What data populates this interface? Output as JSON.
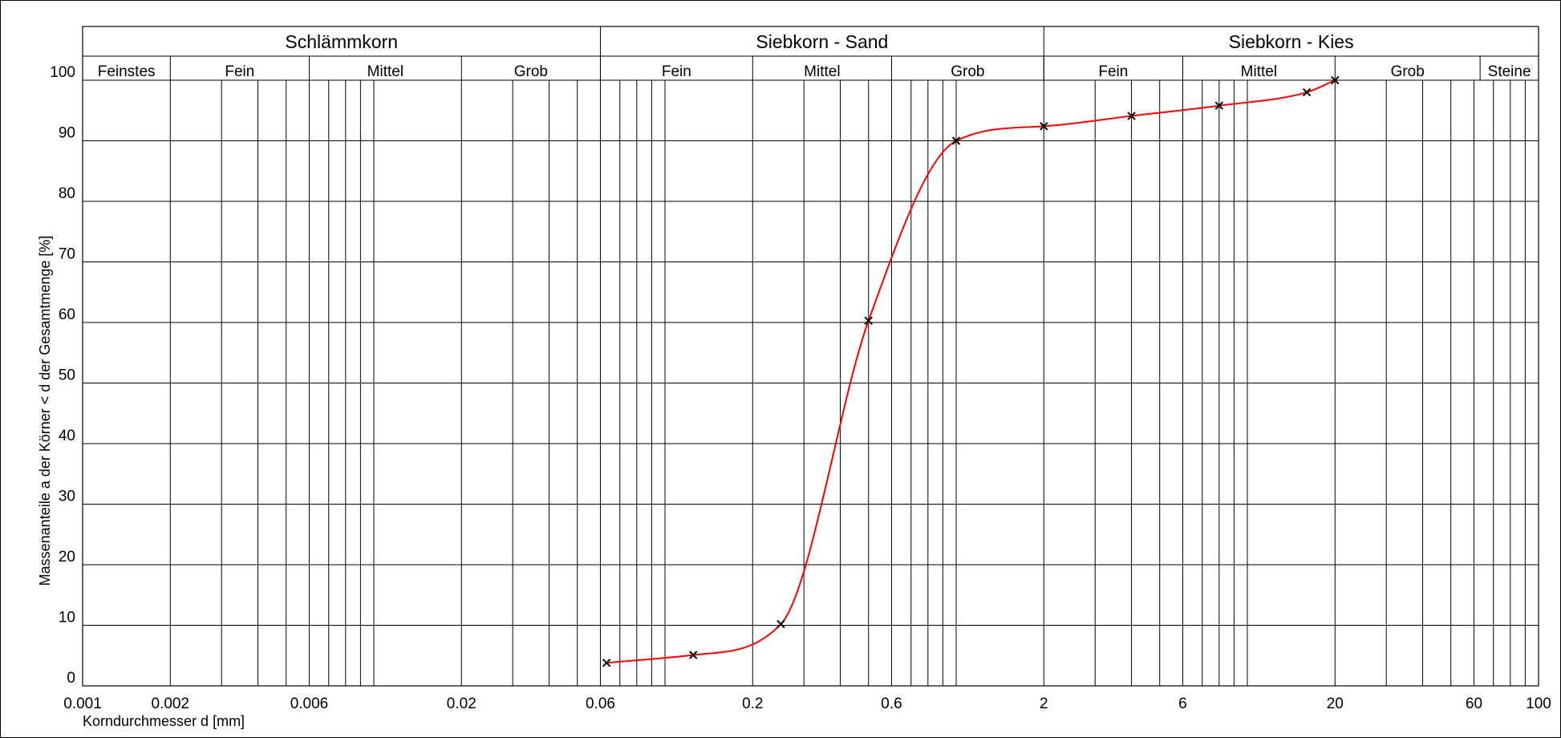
{
  "chart_data": {
    "type": "line",
    "title": "",
    "xlabel": "Korndurchmesser d [mm]",
    "ylabel": "Massenanteile a der Körner < d der Gesamtmenge [%]",
    "x_scale": "log",
    "xlim": [
      0.001,
      100
    ],
    "ylim": [
      0,
      100
    ],
    "grid": true,
    "x_ticks": [
      {
        "value": 0.001,
        "label": "0.001"
      },
      {
        "value": 0.002,
        "label": "0.002"
      },
      {
        "value": 0.006,
        "label": "0.006"
      },
      {
        "value": 0.02,
        "label": "0.02"
      },
      {
        "value": 0.06,
        "label": "0.06"
      },
      {
        "value": 0.2,
        "label": "0.2"
      },
      {
        "value": 0.6,
        "label": "0.6"
      },
      {
        "value": 2,
        "label": "2"
      },
      {
        "value": 6,
        "label": "6"
      },
      {
        "value": 20,
        "label": "20"
      },
      {
        "value": 60,
        "label": "60"
      },
      {
        "value": 100,
        "label": "100"
      }
    ],
    "y_ticks": [
      0,
      10,
      20,
      30,
      40,
      50,
      60,
      70,
      80,
      90,
      100
    ],
    "fraction_groups": [
      {
        "label": "Schlämmkorn",
        "from": 0.001,
        "to": 0.06
      },
      {
        "label": "Siebkorn - Sand",
        "from": 0.06,
        "to": 2
      },
      {
        "label": "Siebkorn - Kies",
        "from": 2,
        "to": 100
      }
    ],
    "fraction_subgroups": [
      {
        "label": "Feinstes",
        "from": 0.001,
        "to": 0.002
      },
      {
        "label": "Fein",
        "from": 0.002,
        "to": 0.006
      },
      {
        "label": "Mittel",
        "from": 0.006,
        "to": 0.02
      },
      {
        "label": "Grob",
        "from": 0.02,
        "to": 0.06
      },
      {
        "label": "Fein",
        "from": 0.06,
        "to": 0.2
      },
      {
        "label": "Mittel",
        "from": 0.2,
        "to": 0.6
      },
      {
        "label": "Grob",
        "from": 0.6,
        "to": 2
      },
      {
        "label": "Fein",
        "from": 2,
        "to": 6
      },
      {
        "label": "Mittel",
        "from": 6,
        "to": 20
      },
      {
        "label": "Grob",
        "from": 20,
        "to": 63
      },
      {
        "label": "Steine",
        "from": 63,
        "to": 100
      }
    ],
    "series": [
      {
        "color": "#ff0000",
        "marker": "x",
        "x": [
          0.063,
          0.125,
          0.25,
          0.5,
          1.0,
          2.0,
          4.0,
          8.0,
          16.0,
          20.0
        ],
        "y": [
          3.8,
          5.1,
          10.2,
          60.3,
          90.0,
          92.4,
          94.1,
          95.8,
          98.0,
          100.0
        ]
      }
    ]
  }
}
